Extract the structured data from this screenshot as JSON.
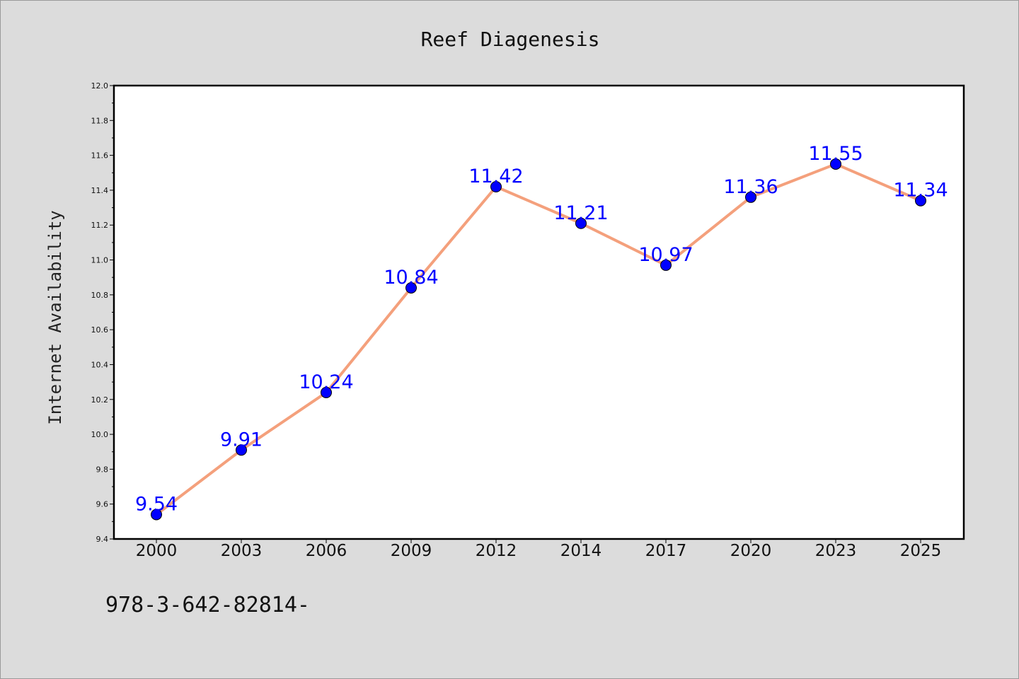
{
  "chart_data": {
    "type": "line",
    "title": "Reef Diagenesis",
    "xlabel": "",
    "ylabel": "Internet Availability",
    "categories": [
      "2000",
      "2003",
      "2006",
      "2009",
      "2012",
      "2014",
      "2017",
      "2020",
      "2023",
      "2025"
    ],
    "values": [
      9.54,
      9.91,
      10.24,
      10.84,
      11.42,
      11.21,
      10.97,
      11.36,
      11.55,
      11.34
    ],
    "data_labels": [
      "9.54",
      "9.91",
      "10.24",
      "10.84",
      "11.42",
      "11.21",
      "10.97",
      "11.36",
      "11.55",
      "11.34"
    ],
    "ylim": [
      9.4,
      12.0
    ],
    "yticks": [
      "9.4",
      "9.6",
      "9.8",
      "10.0",
      "10.2",
      "10.4",
      "10.6",
      "10.8",
      "11.0",
      "11.2",
      "11.4",
      "11.6",
      "11.8",
      "12.0"
    ],
    "grid": false,
    "legend": "none",
    "line_color": "#f4a07c",
    "marker_color": "#0000ff",
    "label_color": "#0000ff"
  },
  "footer": {
    "text": "978-3-642-82814-"
  }
}
